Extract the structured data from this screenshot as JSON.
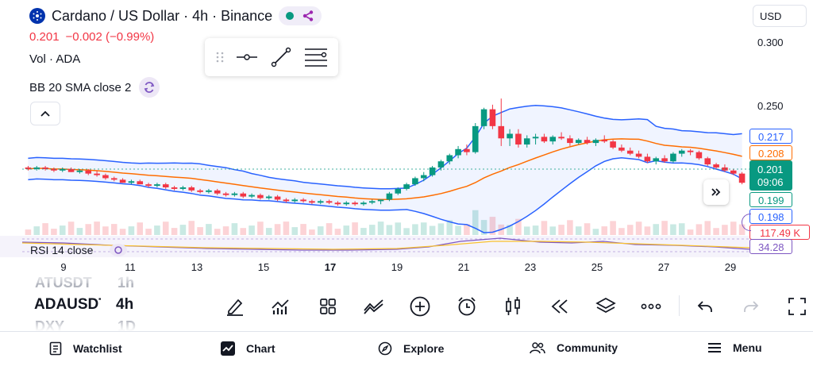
{
  "header": {
    "title": "Cardano / US Dollar · 4h · Binance",
    "price": "0.201",
    "change": "−0.002 (−0.99%)",
    "volume_label": "Vol · ADA",
    "bb_label": "BB 20 SMA close 2",
    "currency": "USD"
  },
  "colors": {
    "up": "#089981",
    "down": "#f23645",
    "bb_band": "#2962ff",
    "bb_basis": "#ff6d00",
    "rsi": "#7e57c2"
  },
  "price_scale": {
    "ticks": [
      "0.300",
      "0.250"
    ],
    "tags": {
      "upper": "0.217",
      "basis": "0.208",
      "last": "0.201",
      "countdown": "09:06",
      "prev": "0.199",
      "lower": "0.198",
      "volume": "117.49 K",
      "rsi": "34.28"
    }
  },
  "rsi_label": "RSI 14 close",
  "x_axis": {
    "ticks": [
      {
        "label": "9",
        "bold": false
      },
      {
        "label": "11",
        "bold": false
      },
      {
        "label": "13",
        "bold": false
      },
      {
        "label": "15",
        "bold": false
      },
      {
        "label": "17",
        "bold": true
      },
      {
        "label": "19",
        "bold": false
      },
      {
        "label": "21",
        "bold": false
      },
      {
        "label": "23",
        "bold": false
      },
      {
        "label": "25",
        "bold": false
      },
      {
        "label": "27",
        "bold": false
      },
      {
        "label": "29",
        "bold": false
      }
    ]
  },
  "symbol_picker": {
    "above": "ATUSDT",
    "current": "ADAUSDT",
    "below": "DXY",
    "interval_above": "1h",
    "interval_current": "4h",
    "interval_below": "1D"
  },
  "toolbar_icons": [
    "pencil-icon",
    "indicators-icon",
    "layouts-icon",
    "trend-icon",
    "add-icon",
    "alarm-icon",
    "candles-icon",
    "replay-icon",
    "layers-icon",
    "more-icon",
    "undo-icon",
    "redo-icon",
    "fullscreen-icon"
  ],
  "nav": {
    "items": [
      "Watchlist",
      "Chart",
      "Explore",
      "Community",
      "Menu"
    ]
  },
  "chart_data": {
    "type": "candlestick",
    "x_label": "",
    "y_label": "",
    "y_range": [
      0.17,
      0.31
    ],
    "note_series": "approximate 4h OHLC for ADA/USD",
    "x_ticks": [
      "9",
      "11",
      "13",
      "15",
      "17",
      "19",
      "21",
      "23",
      "25",
      "27",
      "29"
    ],
    "candles": [
      [
        0.211,
        0.212,
        0.209,
        0.21
      ],
      [
        0.21,
        0.212,
        0.209,
        0.211
      ],
      [
        0.211,
        0.212,
        0.209,
        0.21
      ],
      [
        0.21,
        0.211,
        0.208,
        0.209
      ],
      [
        0.209,
        0.211,
        0.208,
        0.21
      ],
      [
        0.21,
        0.211,
        0.208,
        0.208
      ],
      [
        0.208,
        0.21,
        0.207,
        0.209
      ],
      [
        0.209,
        0.21,
        0.206,
        0.207
      ],
      [
        0.207,
        0.209,
        0.205,
        0.206
      ],
      [
        0.206,
        0.207,
        0.203,
        0.204
      ],
      [
        0.204,
        0.205,
        0.202,
        0.203
      ],
      [
        0.203,
        0.204,
        0.201,
        0.201
      ],
      [
        0.201,
        0.203,
        0.2,
        0.202
      ],
      [
        0.202,
        0.203,
        0.2,
        0.2
      ],
      [
        0.2,
        0.201,
        0.198,
        0.199
      ],
      [
        0.199,
        0.201,
        0.198,
        0.2
      ],
      [
        0.2,
        0.201,
        0.197,
        0.198
      ],
      [
        0.198,
        0.199,
        0.196,
        0.197
      ],
      [
        0.197,
        0.199,
        0.196,
        0.198
      ],
      [
        0.198,
        0.199,
        0.195,
        0.196
      ],
      [
        0.196,
        0.197,
        0.194,
        0.195
      ],
      [
        0.195,
        0.197,
        0.194,
        0.196
      ],
      [
        0.196,
        0.197,
        0.193,
        0.194
      ],
      [
        0.194,
        0.195,
        0.192,
        0.193
      ],
      [
        0.193,
        0.195,
        0.192,
        0.194
      ],
      [
        0.194,
        0.195,
        0.191,
        0.192
      ],
      [
        0.192,
        0.194,
        0.191,
        0.193
      ],
      [
        0.193,
        0.194,
        0.19,
        0.191
      ],
      [
        0.191,
        0.193,
        0.19,
        0.192
      ],
      [
        0.192,
        0.193,
        0.189,
        0.19
      ],
      [
        0.19,
        0.191,
        0.188,
        0.189
      ],
      [
        0.189,
        0.191,
        0.188,
        0.19
      ],
      [
        0.19,
        0.191,
        0.188,
        0.189
      ],
      [
        0.189,
        0.19,
        0.187,
        0.188
      ],
      [
        0.188,
        0.19,
        0.187,
        0.189
      ],
      [
        0.189,
        0.19,
        0.187,
        0.188
      ],
      [
        0.188,
        0.189,
        0.186,
        0.187
      ],
      [
        0.187,
        0.189,
        0.186,
        0.188
      ],
      [
        0.188,
        0.189,
        0.186,
        0.187
      ],
      [
        0.187,
        0.189,
        0.186,
        0.188
      ],
      [
        0.188,
        0.19,
        0.187,
        0.189
      ],
      [
        0.189,
        0.19,
        0.187,
        0.19
      ],
      [
        0.19,
        0.195,
        0.189,
        0.194
      ],
      [
        0.194,
        0.198,
        0.193,
        0.197
      ],
      [
        0.197,
        0.201,
        0.196,
        0.2
      ],
      [
        0.2,
        0.205,
        0.199,
        0.204
      ],
      [
        0.204,
        0.208,
        0.202,
        0.206
      ],
      [
        0.206,
        0.212,
        0.205,
        0.211
      ],
      [
        0.211,
        0.216,
        0.209,
        0.215
      ],
      [
        0.215,
        0.22,
        0.213,
        0.219
      ],
      [
        0.219,
        0.225,
        0.217,
        0.223
      ],
      [
        0.223,
        0.226,
        0.219,
        0.221
      ],
      [
        0.221,
        0.24,
        0.22,
        0.238
      ],
      [
        0.238,
        0.25,
        0.236,
        0.249
      ],
      [
        0.249,
        0.252,
        0.236,
        0.238
      ],
      [
        0.238,
        0.256,
        0.225,
        0.23
      ],
      [
        0.23,
        0.236,
        0.225,
        0.233
      ],
      [
        0.233,
        0.236,
        0.224,
        0.226
      ],
      [
        0.226,
        0.232,
        0.224,
        0.23
      ],
      [
        0.23,
        0.233,
        0.226,
        0.231
      ],
      [
        0.231,
        0.233,
        0.227,
        0.228
      ],
      [
        0.228,
        0.232,
        0.226,
        0.231
      ],
      [
        0.231,
        0.234,
        0.229,
        0.23
      ],
      [
        0.23,
        0.232,
        0.225,
        0.227
      ],
      [
        0.227,
        0.23,
        0.226,
        0.229
      ],
      [
        0.229,
        0.231,
        0.226,
        0.227
      ],
      [
        0.227,
        0.23,
        0.225,
        0.229
      ],
      [
        0.229,
        0.232,
        0.227,
        0.228
      ],
      [
        0.228,
        0.229,
        0.223,
        0.224
      ],
      [
        0.224,
        0.226,
        0.221,
        0.222
      ],
      [
        0.222,
        0.224,
        0.219,
        0.22
      ],
      [
        0.22,
        0.222,
        0.217,
        0.218
      ],
      [
        0.218,
        0.22,
        0.214,
        0.215
      ],
      [
        0.215,
        0.218,
        0.213,
        0.217
      ],
      [
        0.217,
        0.219,
        0.214,
        0.215
      ],
      [
        0.215,
        0.221,
        0.214,
        0.22
      ],
      [
        0.22,
        0.223,
        0.218,
        0.222
      ],
      [
        0.222,
        0.223,
        0.219,
        0.221
      ],
      [
        0.221,
        0.222,
        0.216,
        0.217
      ],
      [
        0.217,
        0.218,
        0.212,
        0.213
      ],
      [
        0.213,
        0.214,
        0.21,
        0.211
      ],
      [
        0.211,
        0.213,
        0.208,
        0.209
      ],
      [
        0.209,
        0.21,
        0.206,
        0.207
      ],
      [
        0.207,
        0.208,
        0.2,
        0.201
      ]
    ]
  }
}
